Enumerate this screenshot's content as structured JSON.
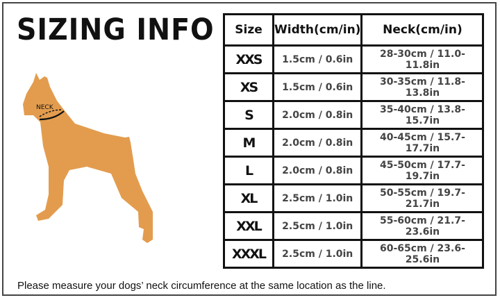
{
  "title": "SIZING INFO",
  "dog_label": "NECK",
  "colors": {
    "dog": "#E39C4E",
    "border": "#111111"
  },
  "table": {
    "headers": [
      "Size",
      "Width(cm/in)",
      "Neck(cm/in)"
    ],
    "rows": [
      {
        "size": "XXS",
        "width": "1.5cm / 0.6in",
        "neck": "28-30cm / 11.0-11.8in"
      },
      {
        "size": "XS",
        "width": "1.5cm / 0.6in",
        "neck": "30-35cm / 11.8-13.8in"
      },
      {
        "size": "S",
        "width": "2.0cm / 0.8in",
        "neck": "35-40cm / 13.8-15.7in"
      },
      {
        "size": "M",
        "width": "2.0cm / 0.8in",
        "neck": "40-45cm / 15.7-17.7in"
      },
      {
        "size": "L",
        "width": "2.0cm / 0.8in",
        "neck": "45-50cm / 17.7-19.7in"
      },
      {
        "size": "XL",
        "width": "2.5cm / 1.0in",
        "neck": "50-55cm / 19.7-21.7in"
      },
      {
        "size": "XXL",
        "width": "2.5cm / 1.0in",
        "neck": "55-60cm / 21.7-23.6in"
      },
      {
        "size": "XXXL",
        "width": "2.5cm / 1.0in",
        "neck": "60-65cm / 23.6-25.6in"
      }
    ]
  },
  "note": "Please measure your dogs’  neck circumference at the same location as the line."
}
